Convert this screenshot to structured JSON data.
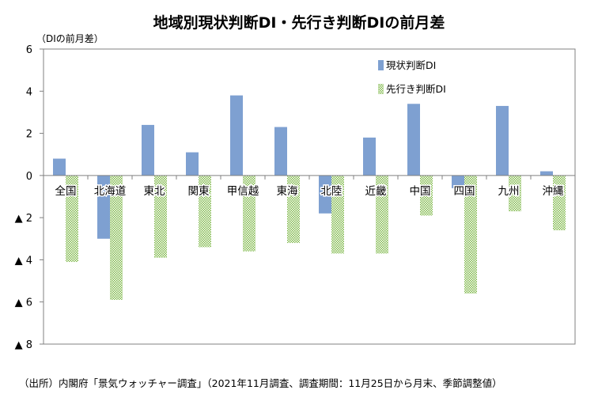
{
  "colors": {
    "series1": "#7ea0d1",
    "series2_base": "#7fb84a",
    "series2_light": "#ffffff"
  },
  "chart_data": {
    "type": "bar",
    "title": "地域別現状判断DI・先行き判断DIの前月差",
    "ylabel": "（DIの前月差）",
    "ylim": [
      -8,
      6
    ],
    "yticks": [
      {
        "value": 6,
        "label": "6"
      },
      {
        "value": 4,
        "label": "4"
      },
      {
        "value": 2,
        "label": "2"
      },
      {
        "value": 0,
        "label": "0"
      },
      {
        "value": -2,
        "label": "▲ 2"
      },
      {
        "value": -4,
        "label": "▲ 4"
      },
      {
        "value": -6,
        "label": "▲ 6"
      },
      {
        "value": -8,
        "label": "▲ 8"
      }
    ],
    "categories": [
      "全国",
      "北海道",
      "東北",
      "関東",
      "甲信越",
      "東海",
      "北陸",
      "近畿",
      "中国",
      "四国",
      "九州",
      "沖縄"
    ],
    "series": [
      {
        "name": "現状判断DI",
        "values": [
          0.8,
          -3.0,
          2.4,
          1.1,
          3.8,
          2.3,
          -1.8,
          1.8,
          3.4,
          -0.6,
          3.3,
          0.2
        ]
      },
      {
        "name": "先行き判断DI",
        "values": [
          -4.1,
          -5.9,
          -3.9,
          -3.4,
          -3.6,
          -3.2,
          -3.7,
          -3.7,
          -1.9,
          -5.6,
          -1.7,
          -2.6
        ]
      }
    ],
    "legend_position": "top-right",
    "grid": false
  },
  "source_note": "（出所）内閣府「景気ウォッチャー調査」（2021年11月調査、調査期間：11月25日から月末、季節調整値）"
}
